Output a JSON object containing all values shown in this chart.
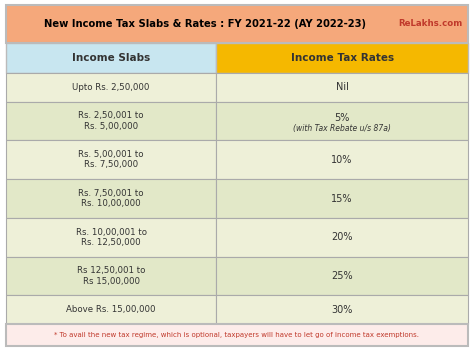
{
  "title": "New Income Tax Slabs & Rates : FY 2021-22 (AY 2022-23)",
  "brand": "ReLakhs.com",
  "title_bg": "#F5A87B",
  "brand_color": "#C0392B",
  "header_left_bg": "#C8E6F0",
  "header_right_bg": "#F5B800",
  "header_left_text": "Income Slabs",
  "header_right_text": "Income Tax Rates",
  "row_bg_light": "#EEF0D8",
  "row_bg_dark": "#E2E8C8",
  "outer_border": "#AAAAAA",
  "cell_border": "#AAAAAA",
  "rows": [
    {
      "slab": "Upto Rs. 2,50,000",
      "rate": "Nil",
      "rate_sub": ""
    },
    {
      "slab": "Rs. 2,50,001 to\nRs. 5,00,000",
      "rate": "5%",
      "rate_sub": "(with Tax Rebate u/s 87a)"
    },
    {
      "slab": "Rs. 5,00,001 to\nRs. 7,50,000",
      "rate": "10%",
      "rate_sub": ""
    },
    {
      "slab": "Rs. 7,50,001 to\nRs. 10,00,000",
      "rate": "15%",
      "rate_sub": ""
    },
    {
      "slab": "Rs. 10,00,001 to\nRs. 12,50,000",
      "rate": "20%",
      "rate_sub": ""
    },
    {
      "slab": "Rs 12,50,001 to\nRs 15,00,000",
      "rate": "25%",
      "rate_sub": ""
    },
    {
      "slab": "Above Rs. 15,00,000",
      "rate": "30%",
      "rate_sub": ""
    }
  ],
  "footnote": "* To avail the new tax regime, which is optional, taxpayers will have to let go of income tax exemptions.",
  "footnote_color": "#C0392B",
  "footnote_bg": "#FDECEA",
  "text_color": "#333333",
  "border_color": "#BBBBBB",
  "fig_bg": "#FFFFFF"
}
